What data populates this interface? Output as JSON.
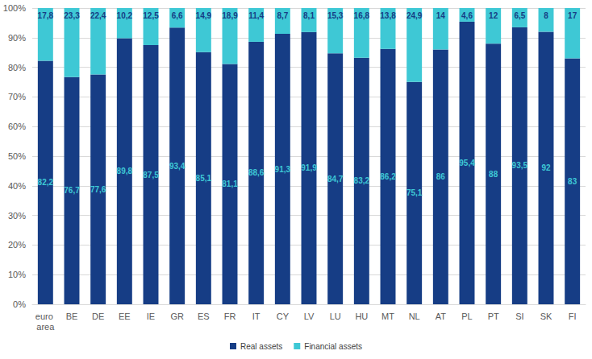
{
  "chart_data": {
    "type": "bar",
    "stacked": true,
    "data_labels": true,
    "grid": true,
    "legend": "bottom",
    "categories": [
      "euro area",
      "BE",
      "DE",
      "EE",
      "IE",
      "GR",
      "ES",
      "FR",
      "IT",
      "CY",
      "LV",
      "LU",
      "HU",
      "MT",
      "NL",
      "AT",
      "PL",
      "PT",
      "SI",
      "SK",
      "FI"
    ],
    "ylim": [
      0,
      100
    ],
    "yticks": [
      {
        "value": 0,
        "label": "0%"
      },
      {
        "value": 10,
        "label": "10%"
      },
      {
        "value": 20,
        "label": "20%"
      },
      {
        "value": 30,
        "label": "30%"
      },
      {
        "value": 40,
        "label": "40%"
      },
      {
        "value": 50,
        "label": "50%"
      },
      {
        "value": 60,
        "label": "60%"
      },
      {
        "value": 70,
        "label": "70%"
      },
      {
        "value": 80,
        "label": "80%"
      },
      {
        "value": 90,
        "label": "90%"
      },
      {
        "value": 100,
        "label": "100%"
      }
    ],
    "series": [
      {
        "name": "Real assets",
        "color": "#163d85",
        "values": [
          82.2,
          76.7,
          77.6,
          89.8,
          87.5,
          93.4,
          85.1,
          81.1,
          88.6,
          91.3,
          91.9,
          84.7,
          83.2,
          86.2,
          75.1,
          86,
          95.4,
          88,
          93.5,
          92,
          83
        ],
        "value_labels": [
          "82,2",
          "76,7",
          "77,6",
          "89,8",
          "87,5",
          "93,4",
          "85,1",
          "81,1",
          "88,6",
          "91,3",
          "91,9",
          "84,7",
          "83,2",
          "86,2",
          "75,1",
          "86",
          "95,4",
          "88",
          "93,5",
          "92",
          "83"
        ]
      },
      {
        "name": "Financial assets",
        "color": "#3ec8d5",
        "values": [
          17.8,
          23.3,
          22.4,
          10.2,
          12.5,
          6.6,
          14.9,
          18.9,
          11.4,
          8.7,
          8.1,
          15.3,
          16.8,
          13.8,
          24.9,
          14,
          4.6,
          12,
          6.5,
          8,
          17
        ],
        "value_labels": [
          "17,8",
          "23,3",
          "22,4",
          "10,2",
          "12,5",
          "6,6",
          "14,9",
          "18,9",
          "11,4",
          "8,7",
          "8,1",
          "15,3",
          "16,8",
          "13,8",
          "24,9",
          "14",
          "4,6",
          "12",
          "6,5",
          "8",
          "17"
        ]
      }
    ]
  }
}
